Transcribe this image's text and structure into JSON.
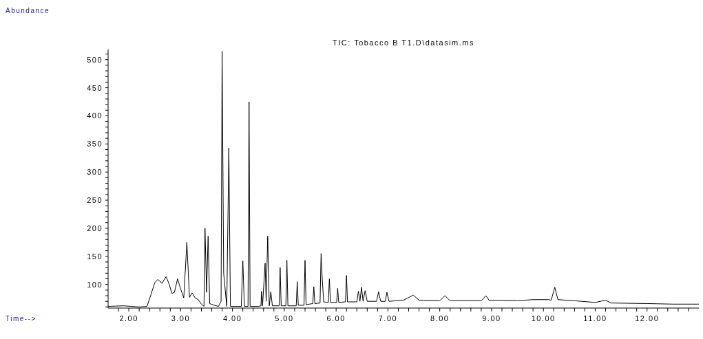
{
  "chart_data": {
    "type": "line",
    "title": "TIC: Tobacco B T1.D\\datasim.ms",
    "annotations": [
      "Abundance",
      "Time-->"
    ],
    "xlim": [
      1.6,
      13.0
    ],
    "ylim": [
      58,
      518
    ],
    "xticks": [
      {
        "value": 1.8,
        "label": null
      },
      {
        "value": 2,
        "label": "2.00"
      },
      {
        "value": 2.2,
        "label": null
      },
      {
        "value": 2.4,
        "label": null
      },
      {
        "value": 2.6,
        "label": null
      },
      {
        "value": 2.8,
        "label": null
      },
      {
        "value": 3,
        "label": "3.00"
      },
      {
        "value": 3.2,
        "label": null
      },
      {
        "value": 3.4,
        "label": null
      },
      {
        "value": 3.6,
        "label": null
      },
      {
        "value": 3.8,
        "label": null
      },
      {
        "value": 4,
        "label": "4.00"
      },
      {
        "value": 4.2,
        "label": null
      },
      {
        "value": 4.4,
        "label": null
      },
      {
        "value": 4.6,
        "label": null
      },
      {
        "value": 4.8,
        "label": null
      },
      {
        "value": 5,
        "label": "5.00"
      },
      {
        "value": 5.2,
        "label": null
      },
      {
        "value": 5.4,
        "label": null
      },
      {
        "value": 5.6,
        "label": null
      },
      {
        "value": 5.8,
        "label": null
      },
      {
        "value": 6,
        "label": "6.00"
      },
      {
        "value": 6.2,
        "label": null
      },
      {
        "value": 6.4,
        "label": null
      },
      {
        "value": 6.6,
        "label": null
      },
      {
        "value": 6.8,
        "label": null
      },
      {
        "value": 7,
        "label": "7.00"
      },
      {
        "value": 7.2,
        "label": null
      },
      {
        "value": 7.4,
        "label": null
      },
      {
        "value": 7.6,
        "label": null
      },
      {
        "value": 7.8,
        "label": null
      },
      {
        "value": 8,
        "label": "8.00"
      },
      {
        "value": 8.2,
        "label": null
      },
      {
        "value": 8.4,
        "label": null
      },
      {
        "value": 8.6,
        "label": null
      },
      {
        "value": 8.8,
        "label": null
      },
      {
        "value": 9,
        "label": "9.00"
      },
      {
        "value": 9.2,
        "label": null
      },
      {
        "value": 9.4,
        "label": null
      },
      {
        "value": 9.6,
        "label": null
      },
      {
        "value": 9.8,
        "label": null
      },
      {
        "value": 10,
        "label": "10.00"
      },
      {
        "value": 10.2,
        "label": null
      },
      {
        "value": 10.4,
        "label": null
      },
      {
        "value": 10.6,
        "label": null
      },
      {
        "value": 10.8,
        "label": null
      },
      {
        "value": 11,
        "label": "11.00"
      },
      {
        "value": 11.2,
        "label": null
      },
      {
        "value": 11.4,
        "label": null
      },
      {
        "value": 11.6,
        "label": null
      },
      {
        "value": 11.8,
        "label": null
      },
      {
        "value": 12,
        "label": "12.00"
      },
      {
        "value": 12.2,
        "label": null
      },
      {
        "value": 12.4,
        "label": null
      },
      {
        "value": 12.6,
        "label": null
      },
      {
        "value": 12.8,
        "label": null
      }
    ],
    "yticks": [
      {
        "value": 60,
        "label": null
      },
      {
        "value": 70,
        "label": null
      },
      {
        "value": 80,
        "label": null
      },
      {
        "value": 90,
        "label": null
      },
      100,
      {
        "value": 110,
        "label": null
      },
      {
        "value": 120,
        "label": null
      },
      {
        "value": 130,
        "label": null
      },
      {
        "value": 140,
        "label": null
      },
      150,
      {
        "value": 160,
        "label": null
      },
      {
        "value": 170,
        "label": null
      },
      {
        "value": 180,
        "label": null
      },
      {
        "value": 190,
        "label": null
      },
      200,
      {
        "value": 210,
        "label": null
      },
      {
        "value": 220,
        "label": null
      },
      {
        "value": 230,
        "label": null
      },
      {
        "value": 240,
        "label": null
      },
      250,
      {
        "value": 260,
        "label": null
      },
      {
        "value": 270,
        "label": null
      },
      {
        "value": 280,
        "label": null
      },
      {
        "value": 290,
        "label": null
      },
      300,
      {
        "value": 310,
        "label": null
      },
      {
        "value": 320,
        "label": null
      },
      {
        "value": 330,
        "label": null
      },
      {
        "value": 340,
        "label": null
      },
      350,
      {
        "value": 360,
        "label": null
      },
      {
        "value": 370,
        "label": null
      },
      {
        "value": 380,
        "label": null
      },
      {
        "value": 390,
        "label": null
      },
      400,
      {
        "value": 410,
        "label": null
      },
      {
        "value": 420,
        "label": null
      },
      {
        "value": 430,
        "label": null
      },
      {
        "value": 440,
        "label": null
      },
      450,
      {
        "value": 460,
        "label": null
      },
      {
        "value": 470,
        "label": null
      },
      {
        "value": 480,
        "label": null
      },
      {
        "value": 490,
        "label": null
      },
      500,
      {
        "value": 510,
        "label": null
      }
    ],
    "grid": false,
    "marker": "none",
    "line_style": "solid",
    "series": [
      {
        "color": "#000000",
        "x": [
          1.6,
          1.9,
          2.2,
          2.35,
          2.42,
          2.5,
          2.56,
          2.64,
          2.72,
          2.78,
          2.83,
          2.88,
          2.94,
          3.0,
          3.06,
          3.12,
          3.17,
          3.22,
          3.28,
          3.34,
          3.4,
          3.45,
          3.47,
          3.5,
          3.53,
          3.56,
          3.65,
          3.73,
          3.78,
          3.8,
          3.83,
          3.85,
          3.89,
          3.93,
          3.96,
          4.1,
          4.17,
          4.2,
          4.23,
          4.3,
          4.32,
          4.34,
          4.5,
          4.55,
          4.56,
          4.58,
          4.63,
          4.65,
          4.68,
          4.71,
          4.74,
          4.77,
          4.9,
          4.92,
          4.94,
          5.03,
          5.05,
          5.07,
          5.23,
          5.25,
          5.27,
          5.38,
          5.4,
          5.42,
          5.55,
          5.57,
          5.59,
          5.69,
          5.71,
          5.73,
          5.76,
          5.85,
          5.87,
          5.89,
          6.01,
          6.03,
          6.05,
          6.18,
          6.2,
          6.22,
          6.4,
          6.43,
          6.46,
          6.49,
          6.52,
          6.56,
          6.6,
          6.78,
          6.82,
          6.86,
          6.95,
          6.98,
          7.02,
          7.3,
          7.49,
          7.6,
          8.0,
          8.1,
          8.2,
          8.8,
          8.89,
          8.95,
          9.5,
          9.8,
          10.1,
          10.15,
          10.22,
          10.28,
          10.6,
          11.0,
          11.2,
          11.3,
          12.0,
          12.5,
          13.0
        ],
        "values": [
          61,
          62,
          60,
          61,
          80,
          103,
          109,
          102,
          114,
          100,
          84,
          86,
          110,
          92,
          76,
          175,
          77,
          85,
          76,
          73,
          65,
          61,
          200,
          86,
          186,
          66,
          63,
          61,
          70,
          515,
          120,
          100,
          61,
          343,
          61,
          61,
          61,
          142,
          61,
          61,
          425,
          61,
          61,
          62,
          88,
          62,
          138,
          70,
          186,
          62,
          87,
          62,
          62,
          130,
          62,
          62,
          143,
          62,
          62,
          105,
          63,
          63,
          143,
          64,
          66,
          96,
          66,
          67,
          155,
          114,
          69,
          68,
          110,
          68,
          68,
          93,
          68,
          69,
          116,
          69,
          69,
          88,
          70,
          95,
          70,
          89,
          70,
          70,
          87,
          70,
          70,
          86,
          70,
          72,
          81,
          72,
          71,
          80,
          71,
          71,
          80,
          72,
          71,
          73,
          73,
          72,
          95,
          73,
          71,
          68,
          72,
          67,
          66,
          65,
          65
        ]
      }
    ]
  }
}
